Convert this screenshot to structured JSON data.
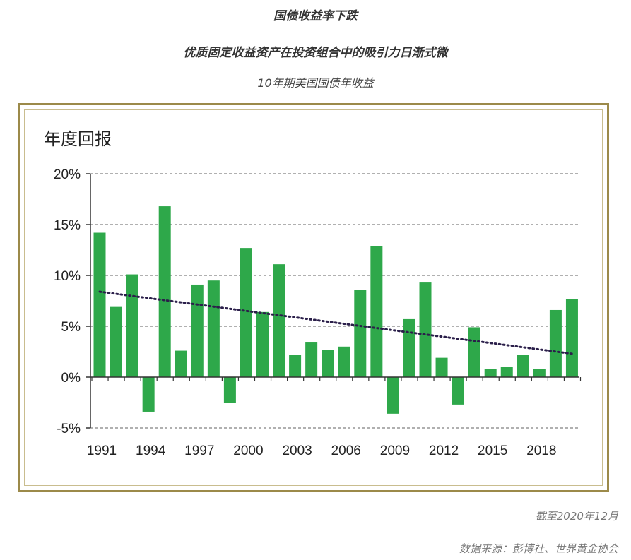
{
  "header": {
    "title": "国债收益率下跌",
    "subtitle": "优质固定收益资产在投资组合中的吸引力日渐式微",
    "chart_caption": "10年期美国国债年收益"
  },
  "footer": {
    "as_of": "截至2020年12月",
    "source": "数据来源：彭博社、世界黄金协会"
  },
  "chart_data": {
    "type": "bar",
    "title": "",
    "ylabel": "年度回报",
    "xlabel": "",
    "categories": [
      "1991",
      "1992",
      "1993",
      "1994",
      "1995",
      "1996",
      "1997",
      "1998",
      "1999",
      "2000",
      "2001",
      "2002",
      "2003",
      "2004",
      "2005",
      "2006",
      "2007",
      "2008",
      "2009",
      "2010",
      "2011",
      "2012",
      "2013",
      "2014",
      "2015",
      "2016",
      "2017",
      "2018",
      "2019",
      "2020"
    ],
    "x_tick_labels": [
      "1991",
      "1994",
      "1997",
      "2000",
      "2003",
      "2006",
      "2009",
      "2012",
      "2015",
      "2018"
    ],
    "values": [
      14.2,
      6.9,
      10.1,
      -3.4,
      16.8,
      2.6,
      9.1,
      9.5,
      -2.5,
      12.7,
      6.4,
      11.1,
      2.2,
      3.4,
      2.7,
      3.0,
      8.6,
      12.9,
      -3.6,
      5.7,
      9.3,
      1.9,
      -2.7,
      4.9,
      0.8,
      1.0,
      2.2,
      0.8,
      6.6,
      7.7
    ],
    "y_ticks": [
      "20%",
      "15%",
      "10%",
      "5%",
      "0%",
      "-5%"
    ],
    "y_tick_values": [
      20,
      15,
      10,
      5,
      0,
      -5
    ],
    "ylim": [
      -5,
      20
    ],
    "trendline": {
      "start": 8.4,
      "end": 2.3,
      "style": "dotted"
    },
    "grid": true,
    "colors": {
      "bar": "#2ea84a",
      "trend": "#2b1f4a",
      "grid": "#808080",
      "axis": "#333333",
      "frame": "#9c8a4a"
    }
  }
}
